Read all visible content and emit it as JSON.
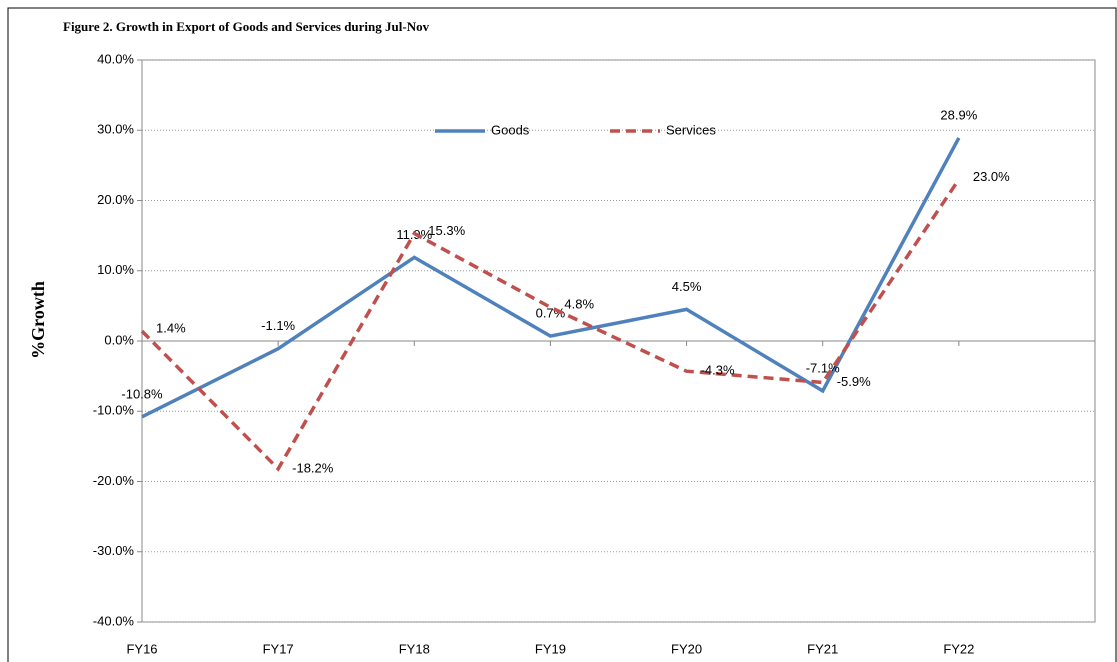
{
  "chart_data": {
    "type": "line",
    "title": "Figure 2. Growth in Export of Goods and Services during Jul-Nov",
    "y_label": "%Growth",
    "categories": [
      "FY16",
      "FY17",
      "FY18",
      "FY19",
      "FY20",
      "FY21",
      "FY22"
    ],
    "series": [
      {
        "name": "Goods",
        "color": "#4f81bd",
        "dash": false,
        "values": [
          -10.8,
          -1.1,
          11.9,
          0.7,
          4.5,
          -7.1,
          28.9
        ],
        "value_labels": [
          "-10.8%",
          "-1.1%",
          "11.9%",
          "0.7%",
          "4.5%",
          "-7.1%",
          "28.9%"
        ]
      },
      {
        "name": "Services",
        "color": "#c0504d",
        "dash": true,
        "values": [
          1.4,
          -18.2,
          15.3,
          4.8,
          -4.3,
          -5.9,
          23.0
        ],
        "value_labels": [
          "1.4%",
          "-18.2%",
          "15.3%",
          "4.8%",
          "-4.3%",
          "-5.9%",
          "23.0%"
        ]
      }
    ],
    "ylim": [
      -40,
      40
    ],
    "yticks": [
      {
        "value": -40,
        "label": "-40.0%"
      },
      {
        "value": -30,
        "label": "-30.0%"
      },
      {
        "value": -20,
        "label": "-20.0%"
      },
      {
        "value": -10,
        "label": "-10.0%"
      },
      {
        "value": 0,
        "label": "0.0%"
      },
      {
        "value": 10,
        "label": "10.0%"
      },
      {
        "value": 20,
        "label": "20.0%"
      },
      {
        "value": 30,
        "label": "30.0%"
      },
      {
        "value": 40,
        "label": "40.0%"
      }
    ],
    "grid": true,
    "legend": "top"
  }
}
